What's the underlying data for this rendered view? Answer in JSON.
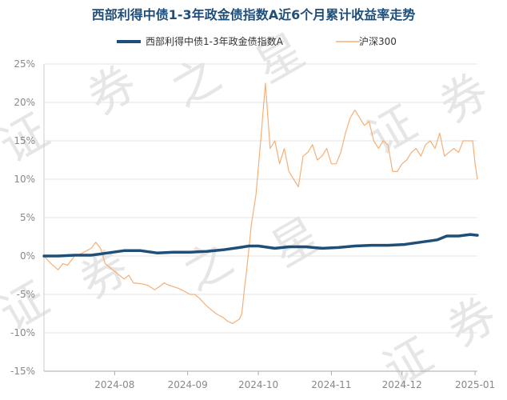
{
  "chart_data": {
    "type": "line",
    "title": "西部利得中债1-3年政金债指数A近6个月累计收益率走势",
    "watermark": [
      "证",
      "券",
      "之",
      "星"
    ],
    "legend_position": "top",
    "grid": true,
    "ylim": [
      -15,
      25
    ],
    "yticks": [
      "25%",
      "20%",
      "15%",
      "10%",
      "5%",
      "0%",
      "-5%",
      "-10%",
      "-15%"
    ],
    "ytick_values": [
      25,
      20,
      15,
      10,
      5,
      0,
      -5,
      -10,
      -15
    ],
    "xlim": [
      "2024-07-02",
      "2025-01-02"
    ],
    "xticks": [
      "2024-08",
      "2024-09",
      "2024-10",
      "2024-11",
      "2024-12",
      "2025-01"
    ],
    "xtick_dates": [
      "2024-08-01",
      "2024-09-01",
      "2024-10-01",
      "2024-11-01",
      "2024-12-01",
      "2025-01-01"
    ],
    "series": [
      {
        "name": "西部利得中债1-3年政金债指数A",
        "color": "#1f4e79",
        "points": [
          [
            "2024-07-02",
            0.0
          ],
          [
            "2024-07-08",
            0.0
          ],
          [
            "2024-07-15",
            0.1
          ],
          [
            "2024-07-22",
            0.1
          ],
          [
            "2024-07-29",
            0.4
          ],
          [
            "2024-08-05",
            0.7
          ],
          [
            "2024-08-12",
            0.7
          ],
          [
            "2024-08-19",
            0.4
          ],
          [
            "2024-08-26",
            0.5
          ],
          [
            "2024-09-02",
            0.5
          ],
          [
            "2024-09-09",
            0.6
          ],
          [
            "2024-09-16",
            0.8
          ],
          [
            "2024-09-23",
            1.1
          ],
          [
            "2024-09-27",
            1.3
          ],
          [
            "2024-10-01",
            1.3
          ],
          [
            "2024-10-08",
            1.0
          ],
          [
            "2024-10-14",
            1.2
          ],
          [
            "2024-10-21",
            1.2
          ],
          [
            "2024-10-28",
            1.0
          ],
          [
            "2024-11-04",
            1.1
          ],
          [
            "2024-11-11",
            1.3
          ],
          [
            "2024-11-18",
            1.4
          ],
          [
            "2024-11-25",
            1.4
          ],
          [
            "2024-12-02",
            1.5
          ],
          [
            "2024-12-09",
            1.8
          ],
          [
            "2024-12-16",
            2.1
          ],
          [
            "2024-12-20",
            2.6
          ],
          [
            "2024-12-25",
            2.6
          ],
          [
            "2024-12-30",
            2.8
          ],
          [
            "2025-01-02",
            2.7
          ]
        ]
      },
      {
        "name": "沪深300",
        "color": "#f5b078",
        "points": [
          [
            "2024-07-02",
            0.0
          ],
          [
            "2024-07-05",
            -1.0
          ],
          [
            "2024-07-08",
            -1.8
          ],
          [
            "2024-07-10",
            -1.0
          ],
          [
            "2024-07-12",
            -1.2
          ],
          [
            "2024-07-15",
            0.0
          ],
          [
            "2024-07-17",
            0.2
          ],
          [
            "2024-07-19",
            0.5
          ],
          [
            "2024-07-22",
            1.0
          ],
          [
            "2024-07-24",
            1.8
          ],
          [
            "2024-07-26",
            1.0
          ],
          [
            "2024-07-28",
            -1.0
          ],
          [
            "2024-07-30",
            -1.5
          ],
          [
            "2024-08-01",
            -2.0
          ],
          [
            "2024-08-03",
            -2.5
          ],
          [
            "2024-08-05",
            -3.0
          ],
          [
            "2024-08-07",
            -2.5
          ],
          [
            "2024-08-09",
            -3.5
          ],
          [
            "2024-08-12",
            -3.6
          ],
          [
            "2024-08-15",
            -3.8
          ],
          [
            "2024-08-18",
            -4.4
          ],
          [
            "2024-08-20",
            -4.0
          ],
          [
            "2024-08-22",
            -3.5
          ],
          [
            "2024-08-24",
            -3.8
          ],
          [
            "2024-08-26",
            -4.0
          ],
          [
            "2024-08-28",
            -4.2
          ],
          [
            "2024-08-30",
            -4.5
          ],
          [
            "2024-09-02",
            -5.0
          ],
          [
            "2024-09-04",
            -5.0
          ],
          [
            "2024-09-06",
            -5.5
          ],
          [
            "2024-09-09",
            -6.5
          ],
          [
            "2024-09-11",
            -7.0
          ],
          [
            "2024-09-13",
            -7.5
          ],
          [
            "2024-09-16",
            -8.0
          ],
          [
            "2024-09-18",
            -8.5
          ],
          [
            "2024-09-20",
            -8.8
          ],
          [
            "2024-09-23",
            -8.2
          ],
          [
            "2024-09-24",
            -7.5
          ],
          [
            "2024-09-25",
            -4.5
          ],
          [
            "2024-09-26",
            -2.0
          ],
          [
            "2024-09-27",
            1.0
          ],
          [
            "2024-09-28",
            4.0
          ],
          [
            "2024-09-30",
            8.0
          ],
          [
            "2024-10-02",
            15.0
          ],
          [
            "2024-10-04",
            22.5
          ],
          [
            "2024-10-06",
            14.0
          ],
          [
            "2024-10-08",
            15.0
          ],
          [
            "2024-10-10",
            12.0
          ],
          [
            "2024-10-12",
            14.0
          ],
          [
            "2024-10-14",
            11.0
          ],
          [
            "2024-10-16",
            10.0
          ],
          [
            "2024-10-18",
            9.0
          ],
          [
            "2024-10-20",
            13.0
          ],
          [
            "2024-10-22",
            13.5
          ],
          [
            "2024-10-24",
            14.5
          ],
          [
            "2024-10-26",
            12.5
          ],
          [
            "2024-10-28",
            13.0
          ],
          [
            "2024-10-30",
            14.0
          ],
          [
            "2024-11-01",
            12.0
          ],
          [
            "2024-11-03",
            12.0
          ],
          [
            "2024-11-05",
            13.5
          ],
          [
            "2024-11-07",
            16.0
          ],
          [
            "2024-11-09",
            18.0
          ],
          [
            "2024-11-11",
            19.0
          ],
          [
            "2024-11-13",
            18.0
          ],
          [
            "2024-11-15",
            17.0
          ],
          [
            "2024-11-17",
            17.5
          ],
          [
            "2024-11-19",
            15.0
          ],
          [
            "2024-11-21",
            14.0
          ],
          [
            "2024-11-23",
            15.0
          ],
          [
            "2024-11-25",
            14.5
          ],
          [
            "2024-11-27",
            11.0
          ],
          [
            "2024-11-29",
            11.0
          ],
          [
            "2024-12-01",
            12.0
          ],
          [
            "2024-12-03",
            12.5
          ],
          [
            "2024-12-05",
            13.5
          ],
          [
            "2024-12-07",
            14.0
          ],
          [
            "2024-12-09",
            13.0
          ],
          [
            "2024-12-11",
            14.5
          ],
          [
            "2024-12-13",
            15.0
          ],
          [
            "2024-12-15",
            14.0
          ],
          [
            "2024-12-17",
            16.0
          ],
          [
            "2024-12-19",
            13.0
          ],
          [
            "2024-12-21",
            13.5
          ],
          [
            "2024-12-23",
            14.0
          ],
          [
            "2024-12-25",
            13.5
          ],
          [
            "2024-12-27",
            15.0
          ],
          [
            "2024-12-29",
            15.0
          ],
          [
            "2024-12-31",
            15.0
          ],
          [
            "2025-01-01",
            12.0
          ],
          [
            "2025-01-02",
            10.0
          ]
        ]
      }
    ]
  }
}
